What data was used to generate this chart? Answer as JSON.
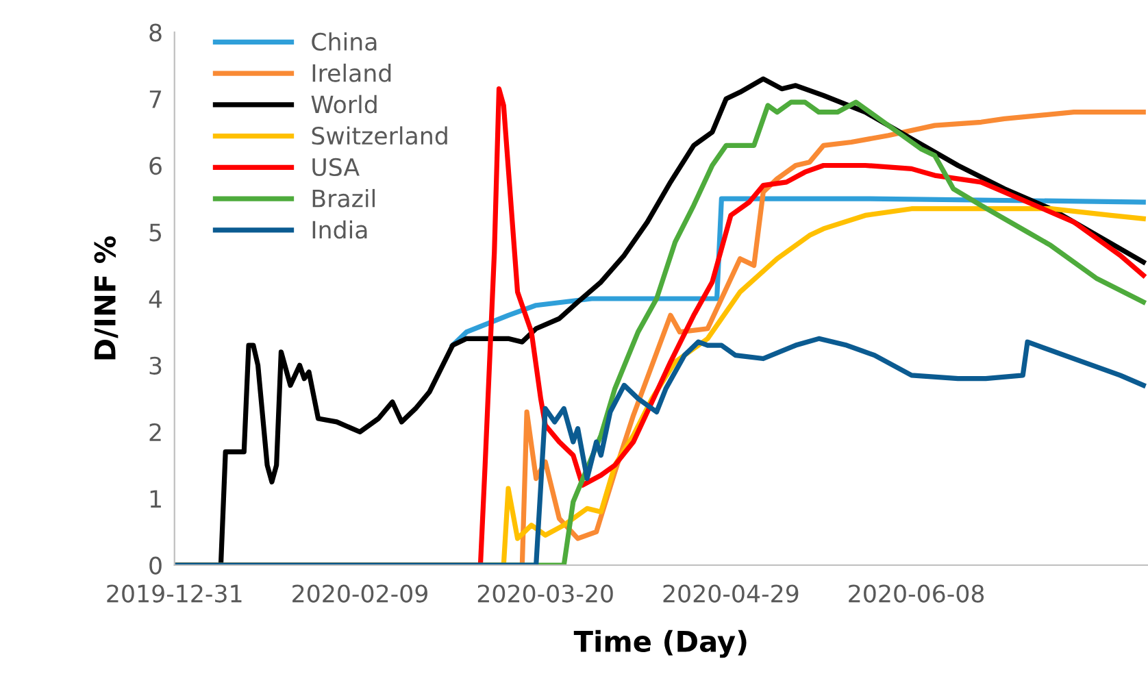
{
  "chart_data": {
    "type": "line",
    "xlabel": "Time (Day)",
    "ylabel": "D/INF %",
    "xlim": [
      "2019-12-31",
      "2020-07-28"
    ],
    "ylim": [
      0,
      8
    ],
    "yticks": [
      0,
      1,
      2,
      3,
      4,
      5,
      6,
      7,
      8
    ],
    "xticks": [
      {
        "value": "2019-12-31",
        "label": "2019-12-31"
      },
      {
        "value": "2020-02-09",
        "label": "2020-02-09"
      },
      {
        "value": "2020-03-20",
        "label": "2020-03-20"
      },
      {
        "value": "2020-04-29",
        "label": "2020-04-29"
      },
      {
        "value": "2020-06-08",
        "label": "2020-06-08"
      }
    ],
    "grid": false,
    "legend": "top left",
    "marker": "none",
    "line_style": "solid",
    "series": [
      {
        "name": "China",
        "color": "#2f9fd9",
        "x": [
          "2020-02-29",
          "2020-03-03",
          "2020-03-12",
          "2020-03-18",
          "2020-03-30",
          "2020-04-26",
          "2020-04-27",
          "2020-05-29",
          "2020-07-27"
        ],
        "values": [
          3.3,
          3.5,
          3.75,
          3.9,
          4.0,
          4.0,
          5.5,
          5.5,
          5.45
        ]
      },
      {
        "name": "Ireland",
        "color": "#f98a34",
        "x": [
          "2019-12-31",
          "2020-03-15",
          "2020-03-16",
          "2020-03-18",
          "2020-03-20",
          "2020-03-23",
          "2020-03-27",
          "2020-03-31",
          "2020-04-04",
          "2020-04-08",
          "2020-04-12",
          "2020-04-16",
          "2020-04-18",
          "2020-04-24",
          "2020-05-01",
          "2020-05-04",
          "2020-05-06",
          "2020-05-09",
          "2020-05-13",
          "2020-05-16",
          "2020-05-19",
          "2020-05-25",
          "2020-06-02",
          "2020-06-12",
          "2020-06-22",
          "2020-06-27",
          "2020-07-12",
          "2020-07-27"
        ],
        "values": [
          0,
          0,
          2.3,
          1.3,
          1.55,
          0.7,
          0.4,
          0.5,
          1.4,
          2.25,
          3.0,
          3.75,
          3.5,
          3.55,
          4.6,
          4.5,
          5.6,
          5.8,
          6.0,
          6.05,
          6.3,
          6.35,
          6.45,
          6.6,
          6.65,
          6.7,
          6.8,
          6.8
        ]
      },
      {
        "name": "World",
        "color": "#000000",
        "x": [
          "2019-12-31",
          "2020-01-10",
          "2020-01-11",
          "2020-01-15",
          "2020-01-16",
          "2020-01-17",
          "2020-01-18",
          "2020-01-20",
          "2020-01-21",
          "2020-01-22",
          "2020-01-23",
          "2020-01-25",
          "2020-01-27",
          "2020-01-28",
          "2020-01-29",
          "2020-01-31",
          "2020-02-04",
          "2020-02-09",
          "2020-02-13",
          "2020-02-16",
          "2020-02-18",
          "2020-02-21",
          "2020-02-24",
          "2020-02-29",
          "2020-03-03",
          "2020-03-12",
          "2020-03-15",
          "2020-03-18",
          "2020-03-23",
          "2020-03-27",
          "2020-04-01",
          "2020-04-06",
          "2020-04-11",
          "2020-04-16",
          "2020-04-21",
          "2020-04-25",
          "2020-04-28",
          "2020-05-01",
          "2020-05-06",
          "2020-05-10",
          "2020-05-13",
          "2020-05-19",
          "2020-05-28",
          "2020-06-07",
          "2020-06-17",
          "2020-06-27",
          "2020-07-07",
          "2020-07-17",
          "2020-07-27"
        ],
        "values": [
          0,
          0,
          1.7,
          1.7,
          3.3,
          3.3,
          3.0,
          1.5,
          1.25,
          1.5,
          3.2,
          2.7,
          3.0,
          2.8,
          2.9,
          2.2,
          2.15,
          2.0,
          2.2,
          2.45,
          2.15,
          2.35,
          2.6,
          3.3,
          3.4,
          3.4,
          3.35,
          3.55,
          3.7,
          3.95,
          4.25,
          4.65,
          5.15,
          5.75,
          6.3,
          6.5,
          7.0,
          7.1,
          7.3,
          7.15,
          7.2,
          7.05,
          6.8,
          6.4,
          6.0,
          5.65,
          5.35,
          4.95,
          4.55
        ]
      },
      {
        "name": "Switzerland",
        "color": "#ffc000",
        "x": [
          "2019-12-31",
          "2020-03-11",
          "2020-03-12",
          "2020-03-14",
          "2020-03-17",
          "2020-03-20",
          "2020-03-24",
          "2020-03-29",
          "2020-04-01",
          "2020-04-04",
          "2020-04-08",
          "2020-04-12",
          "2020-04-17",
          "2020-04-24",
          "2020-05-01",
          "2020-05-09",
          "2020-05-16",
          "2020-05-19",
          "2020-05-28",
          "2020-06-07",
          "2020-06-22",
          "2020-07-07",
          "2020-07-20",
          "2020-07-27"
        ],
        "values": [
          0,
          0,
          1.15,
          0.4,
          0.6,
          0.45,
          0.6,
          0.85,
          0.8,
          1.5,
          1.95,
          2.5,
          3.05,
          3.4,
          4.1,
          4.6,
          4.95,
          5.05,
          5.25,
          5.35,
          5.35,
          5.35,
          5.25,
          5.2
        ]
      },
      {
        "name": "USA",
        "color": "#ff0000",
        "x": [
          "2019-12-31",
          "2020-03-06",
          "2020-03-07",
          "2020-03-09",
          "2020-03-10",
          "2020-03-11",
          "2020-03-14",
          "2020-03-17",
          "2020-03-19",
          "2020-03-20",
          "2020-03-23",
          "2020-03-26",
          "2020-03-28",
          "2020-04-01",
          "2020-04-04",
          "2020-04-08",
          "2020-04-12",
          "2020-04-16",
          "2020-04-21",
          "2020-04-25",
          "2020-04-29",
          "2020-05-03",
          "2020-05-06",
          "2020-05-11",
          "2020-05-15",
          "2020-05-19",
          "2020-05-28",
          "2020-06-07",
          "2020-06-12",
          "2020-06-22",
          "2020-07-02",
          "2020-07-12",
          "2020-07-22",
          "2020-07-27"
        ],
        "values": [
          0,
          0,
          1.5,
          4.7,
          7.15,
          6.9,
          4.1,
          3.5,
          2.5,
          2.1,
          1.85,
          1.65,
          1.2,
          1.35,
          1.5,
          1.85,
          2.45,
          3.05,
          3.75,
          4.25,
          5.25,
          5.45,
          5.7,
          5.75,
          5.9,
          6.0,
          6.0,
          5.95,
          5.85,
          5.75,
          5.45,
          5.15,
          4.65,
          4.35
        ]
      },
      {
        "name": "Brazil",
        "color": "#4eab3c",
        "x": [
          "2019-12-31",
          "2020-03-24",
          "2020-03-26",
          "2020-04-01",
          "2020-04-04",
          "2020-04-09",
          "2020-04-13",
          "2020-04-17",
          "2020-04-21",
          "2020-04-25",
          "2020-04-28",
          "2020-05-04",
          "2020-05-07",
          "2020-05-09",
          "2020-05-12",
          "2020-05-15",
          "2020-05-18",
          "2020-05-22",
          "2020-05-26",
          "2020-06-02",
          "2020-06-09",
          "2020-06-12",
          "2020-06-16",
          "2020-06-22",
          "2020-07-02",
          "2020-07-07",
          "2020-07-17",
          "2020-07-27"
        ],
        "values": [
          0,
          0,
          0.95,
          1.95,
          2.65,
          3.5,
          4.0,
          4.85,
          5.4,
          6.0,
          6.3,
          6.3,
          6.9,
          6.8,
          6.95,
          6.95,
          6.8,
          6.8,
          6.95,
          6.6,
          6.25,
          6.15,
          5.65,
          5.4,
          5.0,
          4.8,
          4.3,
          3.95
        ]
      },
      {
        "name": "India",
        "color": "#0b5b91",
        "x": [
          "2019-12-31",
          "2020-03-18",
          "2020-03-20",
          "2020-03-22",
          "2020-03-24",
          "2020-03-26",
          "2020-03-27",
          "2020-03-29",
          "2020-03-31",
          "2020-04-01",
          "2020-04-03",
          "2020-04-06",
          "2020-04-09",
          "2020-04-13",
          "2020-04-15",
          "2020-04-19",
          "2020-04-22",
          "2020-04-24",
          "2020-04-27",
          "2020-04-30",
          "2020-05-06",
          "2020-05-13",
          "2020-05-18",
          "2020-05-24",
          "2020-05-30",
          "2020-06-07",
          "2020-06-17",
          "2020-06-23",
          "2020-07-01",
          "2020-07-02",
          "2020-07-12",
          "2020-07-22",
          "2020-07-27"
        ],
        "values": [
          0,
          0,
          2.35,
          2.15,
          2.35,
          1.85,
          2.05,
          1.3,
          1.85,
          1.65,
          2.3,
          2.7,
          2.5,
          2.3,
          2.65,
          3.15,
          3.35,
          3.3,
          3.3,
          3.15,
          3.1,
          3.3,
          3.4,
          3.3,
          3.15,
          2.85,
          2.8,
          2.8,
          2.85,
          3.35,
          3.1,
          2.85,
          2.7
        ]
      }
    ]
  }
}
